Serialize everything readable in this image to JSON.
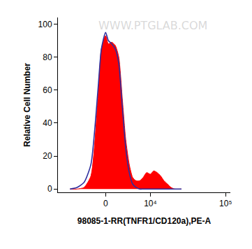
{
  "chart_data": {
    "type": "line",
    "annotations": [
      "WWW.PTGLAB.COM"
    ],
    "x_label": "98085-1-RR(TNFR1/CD120a),PE-A",
    "y_label": "Relative Cell Number",
    "x": [
      -7200,
      -5410,
      -3890,
      -2550,
      -1300,
      -710,
      0,
      470,
      1060,
      1670,
      2290,
      2940,
      3610,
      4330,
      5090,
      5900,
      6780,
      7730,
      8780,
      10000,
      11200,
      12500,
      14000,
      15600,
      17400,
      19400,
      21600,
      26700
    ],
    "series": [
      {
        "type": "area",
        "color": "#ff0000",
        "values": [
          0,
          0,
          1,
          8,
          55,
          85,
          93,
          88,
          89,
          87,
          80,
          55,
          30,
          15,
          7,
          5,
          5,
          7,
          10,
          9,
          11,
          10,
          8,
          5,
          3,
          1,
          0,
          0
        ]
      },
      {
        "type": "line",
        "color": "#2e2e9e",
        "values": [
          0,
          1,
          4,
          15,
          60,
          85,
          95,
          90,
          88,
          85,
          76,
          50,
          25,
          10,
          3,
          1,
          0,
          0,
          0,
          0,
          0,
          0,
          0,
          0,
          0,
          0,
          0,
          0
        ]
      }
    ],
    "xlim": [
      -11000,
      115000
    ],
    "xticks": [
      0,
      {
        "value": 10000,
        "label": "10⁴"
      },
      {
        "value": 100000,
        "label": "10⁵"
      }
    ],
    "ylim": [
      -2,
      104
    ],
    "yticks": [
      0,
      20,
      40,
      60,
      80,
      100
    ],
    "log": "x",
    "grid": false
  }
}
